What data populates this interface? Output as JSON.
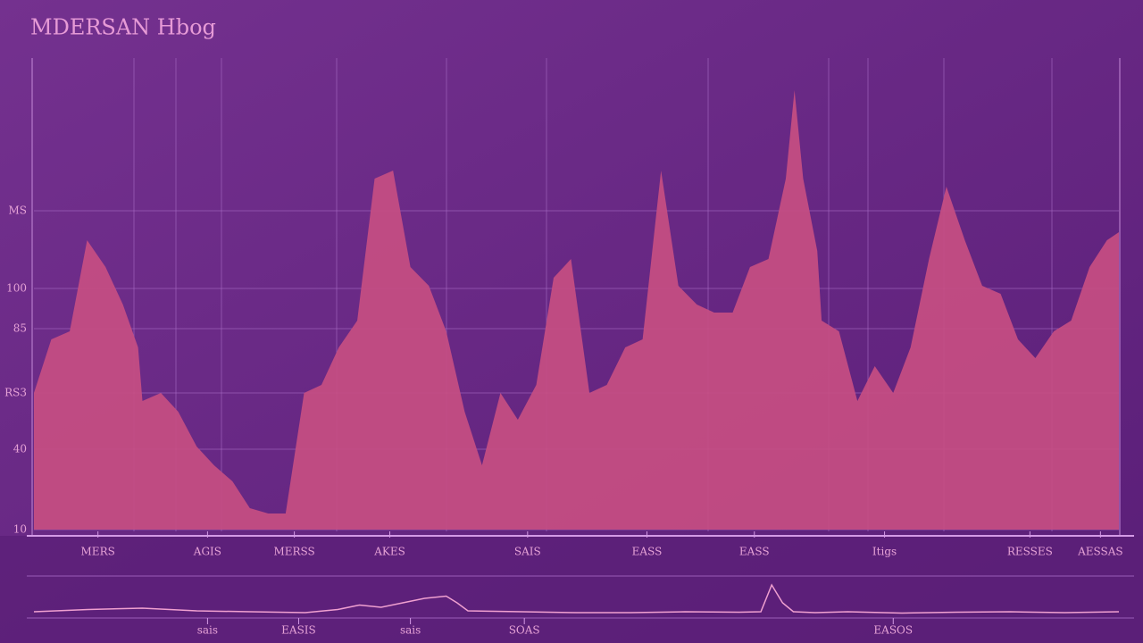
{
  "chart_data": [
    {
      "type": "area",
      "title": "MDERSAN Hbog",
      "color": "#c74e82",
      "grid": true,
      "x": [
        0,
        1.6,
        3.3,
        4.9,
        6.6,
        8.2,
        9.6,
        10.0,
        11.7,
        13.3,
        15.0,
        16.6,
        18.3,
        19.9,
        21.6,
        23.2,
        24.9,
        26.5,
        28.1,
        29.8,
        31.4,
        33.1,
        34.7,
        36.4,
        38.0,
        39.7,
        41.3,
        43.0,
        44.6,
        46.3,
        47.9,
        49.5,
        51.2,
        52.8,
        54.5,
        56.1,
        57.8,
        59.4,
        61.1,
        62.7,
        64.4,
        66.0,
        67.7,
        69.3,
        70.1,
        70.9,
        72.2,
        72.6,
        74.2,
        75.9,
        77.5,
        79.2,
        80.8,
        82.5,
        84.1,
        85.8,
        87.4,
        89.1,
        90.7,
        92.3,
        94.0,
        95.6,
        97.3,
        98.9,
        100
      ],
      "values": [
        61,
        81,
        84,
        118,
        108,
        94,
        78,
        58,
        61,
        54,
        41,
        34,
        28,
        18,
        16,
        16,
        61,
        64,
        78,
        88,
        141,
        144,
        108,
        101,
        84,
        54,
        34,
        61,
        51,
        64,
        104,
        111,
        61,
        64,
        78,
        81,
        144,
        101,
        94,
        91,
        91,
        108,
        111,
        141,
        174,
        141,
        114,
        88,
        84,
        58,
        71,
        61,
        78,
        111,
        138,
        118,
        101,
        98,
        81,
        74,
        84,
        88,
        108,
        118,
        121
      ],
      "xlim": [
        0,
        100
      ],
      "ylim": [
        10,
        186
      ],
      "yticks": [
        10,
        40,
        {
          "value": 61,
          "label": "RS3"
        },
        85,
        100,
        {
          "value": 129,
          "label": "MS"
        }
      ],
      "xticks": [
        {
          "value": 5.9,
          "label": "MERS"
        },
        {
          "value": 16.0,
          "label": "AGIS"
        },
        {
          "value": 24.0,
          "label": "MERSS"
        },
        {
          "value": 32.8,
          "label": "AKES"
        },
        {
          "value": 45.5,
          "label": "SAIS"
        },
        {
          "value": 56.5,
          "label": "EASS"
        },
        {
          "value": 66.4,
          "label": "EASS"
        },
        {
          "value": 78.4,
          "label": "Itigs"
        },
        {
          "value": 91.8,
          "label": "RESSES"
        },
        {
          "value": 98.3,
          "label": "AESSAS"
        }
      ]
    },
    {
      "type": "line",
      "color": "#f0a0d0",
      "x": [
        0,
        5,
        10,
        15,
        20,
        25,
        28,
        30,
        32,
        34,
        36,
        38,
        39,
        40,
        45,
        50,
        55,
        60,
        65,
        67,
        68,
        69,
        70,
        72,
        75,
        80,
        85,
        90,
        95,
        100
      ],
      "values": [
        1,
        1.5,
        1.8,
        1.2,
        1,
        0.8,
        1.5,
        2.5,
        2,
        3,
        4,
        4.5,
        3,
        1.2,
        1,
        0.8,
        0.8,
        1,
        0.9,
        1,
        7,
        3,
        1,
        0.8,
        1,
        0.7,
        0.9,
        1,
        0.8,
        1
      ],
      "xlim": [
        0,
        100
      ],
      "ylim": [
        0,
        10
      ],
      "xticks": [
        {
          "value": 16.0,
          "label": "sais"
        },
        {
          "value": 24.4,
          "label": "EASIS"
        },
        {
          "value": 34.7,
          "label": "sais"
        },
        {
          "value": 45.2,
          "label": "SOAS"
        },
        {
          "value": 79.2,
          "label": "EASOS"
        }
      ]
    }
  ]
}
